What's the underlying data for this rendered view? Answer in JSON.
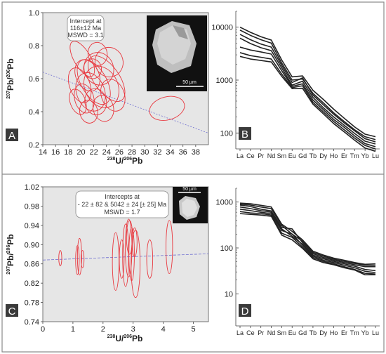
{
  "chart_data": [
    {
      "panel": "A",
      "type": "scatter",
      "subtype": "tera-wasserburg-concordia-error-ellipses",
      "xlabel_base": "U/",
      "xlabel_sup1": "238",
      "xlabel_sup2": "206",
      "xlabel_end": "Pb",
      "ylabel_sup1": "207",
      "ylabel_mid": "Pb/",
      "ylabel_sup2": "206",
      "ylabel_end": "Pb",
      "xlim": [
        14,
        40
      ],
      "ylim": [
        0.2,
        1.0
      ],
      "x_ticks": [
        "14",
        "16",
        "18",
        "20",
        "22",
        "24",
        "26",
        "28",
        "30",
        "32",
        "34",
        "36",
        "38"
      ],
      "y_ticks": [
        "0.2",
        "0.4",
        "0.6",
        "0.8",
        "1.0"
      ],
      "ellipse_color": "#e8373e",
      "ellipses": [
        {
          "cx": 19.8,
          "cy": 0.56,
          "rx": 1.6,
          "ry": 0.11,
          "rot": -20
        },
        {
          "cx": 20.5,
          "cy": 0.48,
          "rx": 1.5,
          "ry": 0.09,
          "rot": -15
        },
        {
          "cx": 21.0,
          "cy": 0.62,
          "rx": 1.8,
          "ry": 0.1,
          "rot": -25
        },
        {
          "cx": 21.5,
          "cy": 0.52,
          "rx": 2.2,
          "ry": 0.12,
          "rot": -20
        },
        {
          "cx": 22.0,
          "cy": 0.58,
          "rx": 2.0,
          "ry": 0.15,
          "rot": -30
        },
        {
          "cx": 22.3,
          "cy": 0.46,
          "rx": 1.7,
          "ry": 0.08,
          "rot": -10
        },
        {
          "cx": 22.8,
          "cy": 0.66,
          "rx": 2.3,
          "ry": 0.1,
          "rot": -20
        },
        {
          "cx": 23.2,
          "cy": 0.55,
          "rx": 2.6,
          "ry": 0.13,
          "rot": -25
        },
        {
          "cx": 23.5,
          "cy": 0.42,
          "rx": 1.6,
          "ry": 0.08,
          "rot": -15
        },
        {
          "cx": 24.0,
          "cy": 0.6,
          "rx": 2.0,
          "ry": 0.16,
          "rot": -35
        },
        {
          "cx": 24.4,
          "cy": 0.7,
          "rx": 2.2,
          "ry": 0.09,
          "rot": -15
        },
        {
          "cx": 21.2,
          "cy": 0.4,
          "rx": 1.4,
          "ry": 0.07,
          "rot": -10
        },
        {
          "cx": 20.2,
          "cy": 0.72,
          "rx": 1.3,
          "ry": 0.12,
          "rot": -30
        },
        {
          "cx": 22.6,
          "cy": 0.75,
          "rx": 1.5,
          "ry": 0.07,
          "rot": -10
        },
        {
          "cx": 25.0,
          "cy": 0.5,
          "rx": 1.8,
          "ry": 0.1,
          "rot": -20
        },
        {
          "cx": 19.5,
          "cy": 0.46,
          "rx": 1.2,
          "ry": 0.08,
          "rot": -20
        },
        {
          "cx": 21.8,
          "cy": 0.66,
          "rx": 1.4,
          "ry": 0.06,
          "rot": -10
        },
        {
          "cx": 33.5,
          "cy": 0.42,
          "rx": 2.8,
          "ry": 0.07,
          "rot": -15
        }
      ],
      "discordia": {
        "x0": 14,
        "y0": 0.64,
        "x1": 40,
        "y1": 0.27
      },
      "annotation_lines": [
        "Intercept at",
        "116±12 Ma",
        "MSWD = 3.1"
      ]
    },
    {
      "panel": "B",
      "type": "line",
      "subtype": "REE-pattern",
      "categories": [
        "La",
        "Ce",
        "Pr",
        "Nd",
        "Sm",
        "Eu",
        "Gd",
        "Tb",
        "Dy",
        "Ho",
        "Er",
        "Tm",
        "Yb",
        "Lu"
      ],
      "yscale": "log",
      "ylim": [
        50,
        20000
      ],
      "y_ticks": [
        "10000",
        "1000",
        "100"
      ],
      "series": [
        {
          "values": [
            10000,
            8000,
            6600,
            5700,
            2400,
            1150,
            1200,
            640,
            430,
            280,
            190,
            130,
            95,
            85
          ]
        },
        {
          "values": [
            8800,
            7000,
            5800,
            5000,
            2100,
            1000,
            1050,
            560,
            370,
            240,
            165,
            115,
            85,
            75
          ]
        },
        {
          "values": [
            7300,
            5800,
            4800,
            4200,
            1900,
            900,
            1100,
            520,
            340,
            225,
            155,
            110,
            78,
            68
          ]
        },
        {
          "values": [
            6200,
            4900,
            4100,
            3600,
            1700,
            800,
            950,
            470,
            300,
            200,
            140,
            98,
            70,
            62
          ]
        },
        {
          "values": [
            4200,
            3700,
            3400,
            3100,
            1500,
            760,
            850,
            420,
            275,
            180,
            128,
            88,
            63,
            55
          ]
        },
        {
          "values": [
            3300,
            2900,
            2700,
            2500,
            1300,
            720,
            780,
            380,
            250,
            165,
            115,
            80,
            58,
            50
          ]
        },
        {
          "values": [
            2800,
            2500,
            2350,
            2200,
            1180,
            690,
            700,
            350,
            230,
            150,
            105,
            73,
            52,
            45
          ]
        }
      ],
      "line_color": "#222222"
    },
    {
      "panel": "C",
      "type": "scatter",
      "subtype": "tera-wasserburg-concordia-error-ellipses",
      "xlim": [
        0,
        5.5
      ],
      "ylim": [
        0.74,
        1.02
      ],
      "x_ticks": [
        "0",
        "1",
        "2",
        "3",
        "4",
        "5"
      ],
      "y_ticks": [
        "0.74",
        "0.78",
        "0.82",
        "0.86",
        "0.90",
        "0.94",
        "0.98",
        "1.02"
      ],
      "ellipse_color": "#e8373e",
      "ellipses": [
        {
          "cx": 0.58,
          "cy": 0.872,
          "rx": 0.05,
          "ry": 0.016,
          "rot": 0
        },
        {
          "cx": 1.15,
          "cy": 0.868,
          "rx": 0.06,
          "ry": 0.03,
          "rot": 0
        },
        {
          "cx": 1.22,
          "cy": 0.875,
          "rx": 0.07,
          "ry": 0.038,
          "rot": 0
        },
        {
          "cx": 1.32,
          "cy": 0.87,
          "rx": 0.05,
          "ry": 0.018,
          "rot": 0
        },
        {
          "cx": 2.42,
          "cy": 0.865,
          "rx": 0.11,
          "ry": 0.06,
          "rot": 0
        },
        {
          "cx": 2.62,
          "cy": 0.87,
          "rx": 0.08,
          "ry": 0.04,
          "rot": 0
        },
        {
          "cx": 2.75,
          "cy": 0.878,
          "rx": 0.1,
          "ry": 0.065,
          "rot": 0
        },
        {
          "cx": 2.85,
          "cy": 0.893,
          "rx": 0.11,
          "ry": 0.06,
          "rot": 0
        },
        {
          "cx": 2.95,
          "cy": 0.88,
          "rx": 0.09,
          "ry": 0.055,
          "rot": 0
        },
        {
          "cx": 3.08,
          "cy": 0.86,
          "rx": 0.15,
          "ry": 0.07,
          "rot": 0
        },
        {
          "cx": 2.88,
          "cy": 0.915,
          "rx": 0.1,
          "ry": 0.035,
          "rot": 0
        },
        {
          "cx": 3.05,
          "cy": 0.905,
          "rx": 0.08,
          "ry": 0.03,
          "rot": 0
        },
        {
          "cx": 3.55,
          "cy": 0.87,
          "rx": 0.1,
          "ry": 0.04,
          "rot": 0
        },
        {
          "cx": 4.2,
          "cy": 0.895,
          "rx": 0.11,
          "ry": 0.055,
          "rot": 0
        }
      ],
      "discordia": {
        "x0": 0,
        "y0": 0.868,
        "x1": 5.5,
        "y1": 0.881
      },
      "annotation_lines": [
        "Intercepts at",
        "- 22 ± 82 & 5042 ± 24 [± 25] Ma",
        "MSWD = 1.7"
      ]
    },
    {
      "panel": "D",
      "type": "line",
      "subtype": "REE-pattern",
      "categories": [
        "La",
        "Ce",
        "Pr",
        "Nd",
        "Sm",
        "Eu",
        "Gd",
        "Tb",
        "Dy",
        "Ho",
        "Er",
        "Tm",
        "Yb",
        "Lu"
      ],
      "yscale": "log",
      "ylim": [
        2,
        2000
      ],
      "y_ticks": [
        "1000",
        "100",
        "10"
      ],
      "series": [
        {
          "values": [
            950,
            920,
            850,
            780,
            330,
            230,
            150,
            85,
            70,
            60,
            54,
            48,
            44,
            45
          ]
        },
        {
          "values": [
            900,
            860,
            780,
            720,
            310,
            200,
            140,
            80,
            66,
            57,
            51,
            46,
            42,
            42
          ]
        },
        {
          "values": [
            860,
            800,
            700,
            640,
            280,
            260,
            130,
            75,
            62,
            54,
            48,
            43,
            39,
            39
          ]
        },
        {
          "values": [
            780,
            720,
            650,
            600,
            260,
            180,
            120,
            70,
            58,
            51,
            45,
            40,
            34,
            32
          ]
        },
        {
          "values": [
            700,
            650,
            600,
            560,
            240,
            200,
            115,
            66,
            54,
            48,
            42,
            37,
            31,
            29
          ]
        },
        {
          "values": [
            620,
            580,
            560,
            520,
            210,
            170,
            105,
            62,
            51,
            45,
            39,
            34,
            28,
            27
          ]
        },
        {
          "values": [
            560,
            540,
            520,
            490,
            190,
            150,
            98,
            58,
            48,
            43,
            37,
            33,
            26,
            26
          ]
        }
      ],
      "line_color": "#222222"
    }
  ],
  "labels": {
    "A": "A",
    "B": "B",
    "C": "C",
    "D": "D"
  },
  "scalebar_a": "50 µm",
  "scalebar_c": "50 µm",
  "colors": {
    "plot_bg": "#e6e6e6",
    "frame": "#8a8a8a",
    "label_box": "#3a3a3a",
    "discordia": "#6e6ed0"
  }
}
